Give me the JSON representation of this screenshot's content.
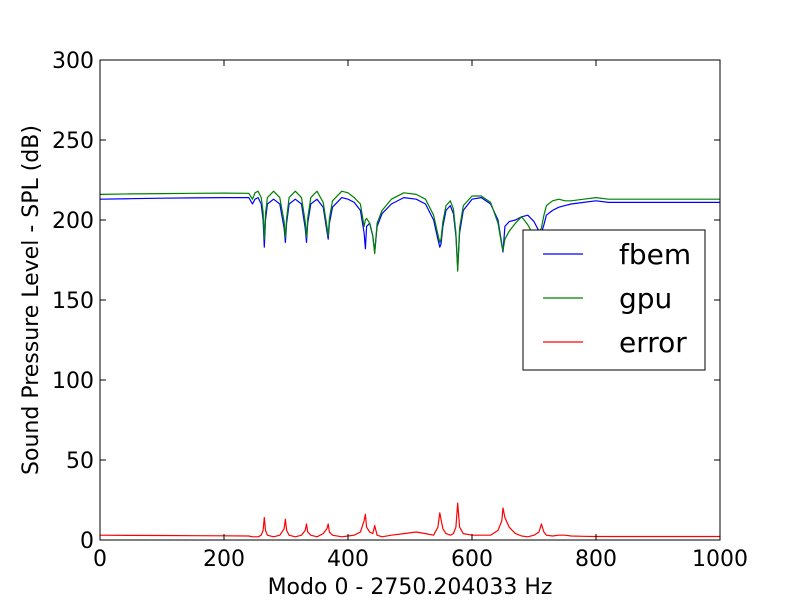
{
  "chart_data": {
    "type": "line",
    "title": "",
    "xlabel": "Modo 0 - 2750.204033 Hz",
    "ylabel": "Sound Pressure Level - SPL (dB)",
    "xlim": [
      0,
      1000
    ],
    "ylim": [
      0,
      300
    ],
    "x_ticks": [
      "0",
      "200",
      "400",
      "600",
      "800",
      "1000"
    ],
    "y_ticks": [
      "0",
      "50",
      "100",
      "150",
      "200",
      "250",
      "300"
    ],
    "legend_position": "center-right",
    "grid": false,
    "series": [
      {
        "name": "fbem",
        "color": "#0000ff",
        "x": [
          0,
          50,
          100,
          150,
          200,
          240,
          246,
          250,
          255,
          260,
          263,
          265,
          267,
          270,
          280,
          290,
          297,
          299,
          301,
          305,
          315,
          325,
          331,
          333,
          335,
          340,
          350,
          360,
          366,
          368,
          370,
          375,
          390,
          400,
          410,
          420,
          426,
          428,
          430,
          435,
          440,
          443,
          447,
          455,
          470,
          490,
          510,
          525,
          538,
          545,
          548,
          550,
          553,
          558,
          565,
          570,
          574,
          577,
          580,
          586,
          600,
          615,
          630,
          642,
          648,
          650,
          653,
          660,
          670,
          680,
          690,
          700,
          708,
          712,
          716,
          720,
          730,
          740,
          750,
          760,
          780,
          800,
          820,
          850,
          900,
          950,
          1000
        ],
        "y": [
          213,
          213.3,
          213.6,
          213.8,
          214,
          214,
          210,
          213,
          214,
          210,
          200,
          183,
          200,
          210,
          213,
          210,
          195,
          186,
          198,
          210,
          213,
          210,
          195,
          186,
          198,
          210,
          213,
          208,
          193,
          188,
          198,
          208,
          214,
          213,
          211,
          206,
          192,
          182,
          196,
          198,
          190,
          180,
          196,
          204,
          210,
          214,
          213,
          210,
          200,
          188,
          183,
          185,
          196,
          206,
          209,
          204,
          190,
          170,
          192,
          206,
          213,
          214,
          210,
          200,
          185,
          180,
          196,
          199,
          200,
          202,
          203,
          199,
          193,
          192,
          197,
          203,
          206,
          208,
          209,
          210,
          211,
          212,
          211,
          211,
          211,
          211,
          211
        ]
      },
      {
        "name": "gpu",
        "color": "#008000",
        "x": [
          0,
          50,
          100,
          150,
          200,
          240,
          246,
          250,
          255,
          260,
          263,
          265,
          267,
          270,
          280,
          290,
          297,
          299,
          301,
          305,
          315,
          325,
          331,
          333,
          335,
          340,
          350,
          360,
          366,
          368,
          370,
          375,
          390,
          400,
          410,
          420,
          426,
          428,
          430,
          435,
          440,
          443,
          447,
          455,
          470,
          490,
          510,
          525,
          538,
          545,
          548,
          550,
          553,
          558,
          565,
          570,
          574,
          577,
          580,
          586,
          600,
          615,
          630,
          642,
          648,
          650,
          653,
          660,
          670,
          680,
          690,
          700,
          708,
          712,
          716,
          720,
          730,
          740,
          750,
          760,
          780,
          800,
          820,
          850,
          900,
          950,
          1000
        ],
        "y": [
          216,
          216.3,
          216.5,
          216.7,
          216.8,
          216.7,
          213,
          217,
          218,
          214,
          205,
          188,
          204,
          214,
          218,
          214,
          199,
          189,
          201,
          214,
          218,
          214,
          199,
          189,
          201,
          214,
          218,
          211,
          196,
          190,
          201,
          212,
          218,
          217,
          214,
          210,
          196,
          200,
          201,
          198,
          190,
          179,
          198,
          206,
          213,
          217,
          216,
          213,
          203,
          191,
          186,
          188,
          199,
          209,
          212,
          207,
          192,
          168,
          195,
          209,
          215,
          215,
          211,
          198,
          184,
          181,
          188,
          193,
          198,
          202,
          197,
          190,
          192,
          195,
          203,
          209,
          212,
          213,
          212,
          212,
          213,
          214,
          213,
          213,
          213,
          213,
          213
        ]
      },
      {
        "name": "error",
        "color": "#ff0000",
        "x": [
          0,
          50,
          100,
          150,
          200,
          240,
          246,
          250,
          255,
          260,
          263,
          265,
          267,
          270,
          280,
          290,
          297,
          299,
          301,
          305,
          315,
          325,
          331,
          333,
          335,
          340,
          350,
          360,
          366,
          368,
          370,
          375,
          390,
          400,
          410,
          420,
          426,
          428,
          430,
          435,
          440,
          443,
          447,
          455,
          470,
          490,
          510,
          525,
          538,
          545,
          548,
          550,
          553,
          558,
          565,
          570,
          574,
          577,
          580,
          586,
          600,
          615,
          630,
          642,
          648,
          650,
          653,
          660,
          670,
          680,
          690,
          700,
          708,
          712,
          716,
          720,
          730,
          740,
          750,
          760,
          780,
          800,
          820,
          850,
          900,
          950,
          1000
        ],
        "y": [
          3,
          2.9,
          2.8,
          2.7,
          2.6,
          2.5,
          2,
          2,
          2,
          3,
          6,
          14,
          6,
          3,
          2,
          3,
          7,
          13,
          6,
          3,
          2,
          3,
          6,
          10,
          5,
          3,
          2,
          4,
          7,
          10,
          5,
          3,
          2,
          2.5,
          3,
          5,
          12,
          16,
          8,
          5,
          4,
          9,
          3,
          2,
          3,
          4,
          5,
          4,
          3,
          8,
          17,
          13,
          7,
          4,
          3,
          4,
          8,
          23,
          8,
          4,
          3,
          3,
          3,
          6,
          12,
          20,
          14,
          8,
          4,
          2.5,
          2,
          3,
          5,
          10,
          5,
          3,
          2.5,
          3,
          3,
          2.5,
          2.3,
          2.2,
          2.2,
          2.2,
          2.2,
          2.2,
          2.2
        ]
      }
    ]
  }
}
